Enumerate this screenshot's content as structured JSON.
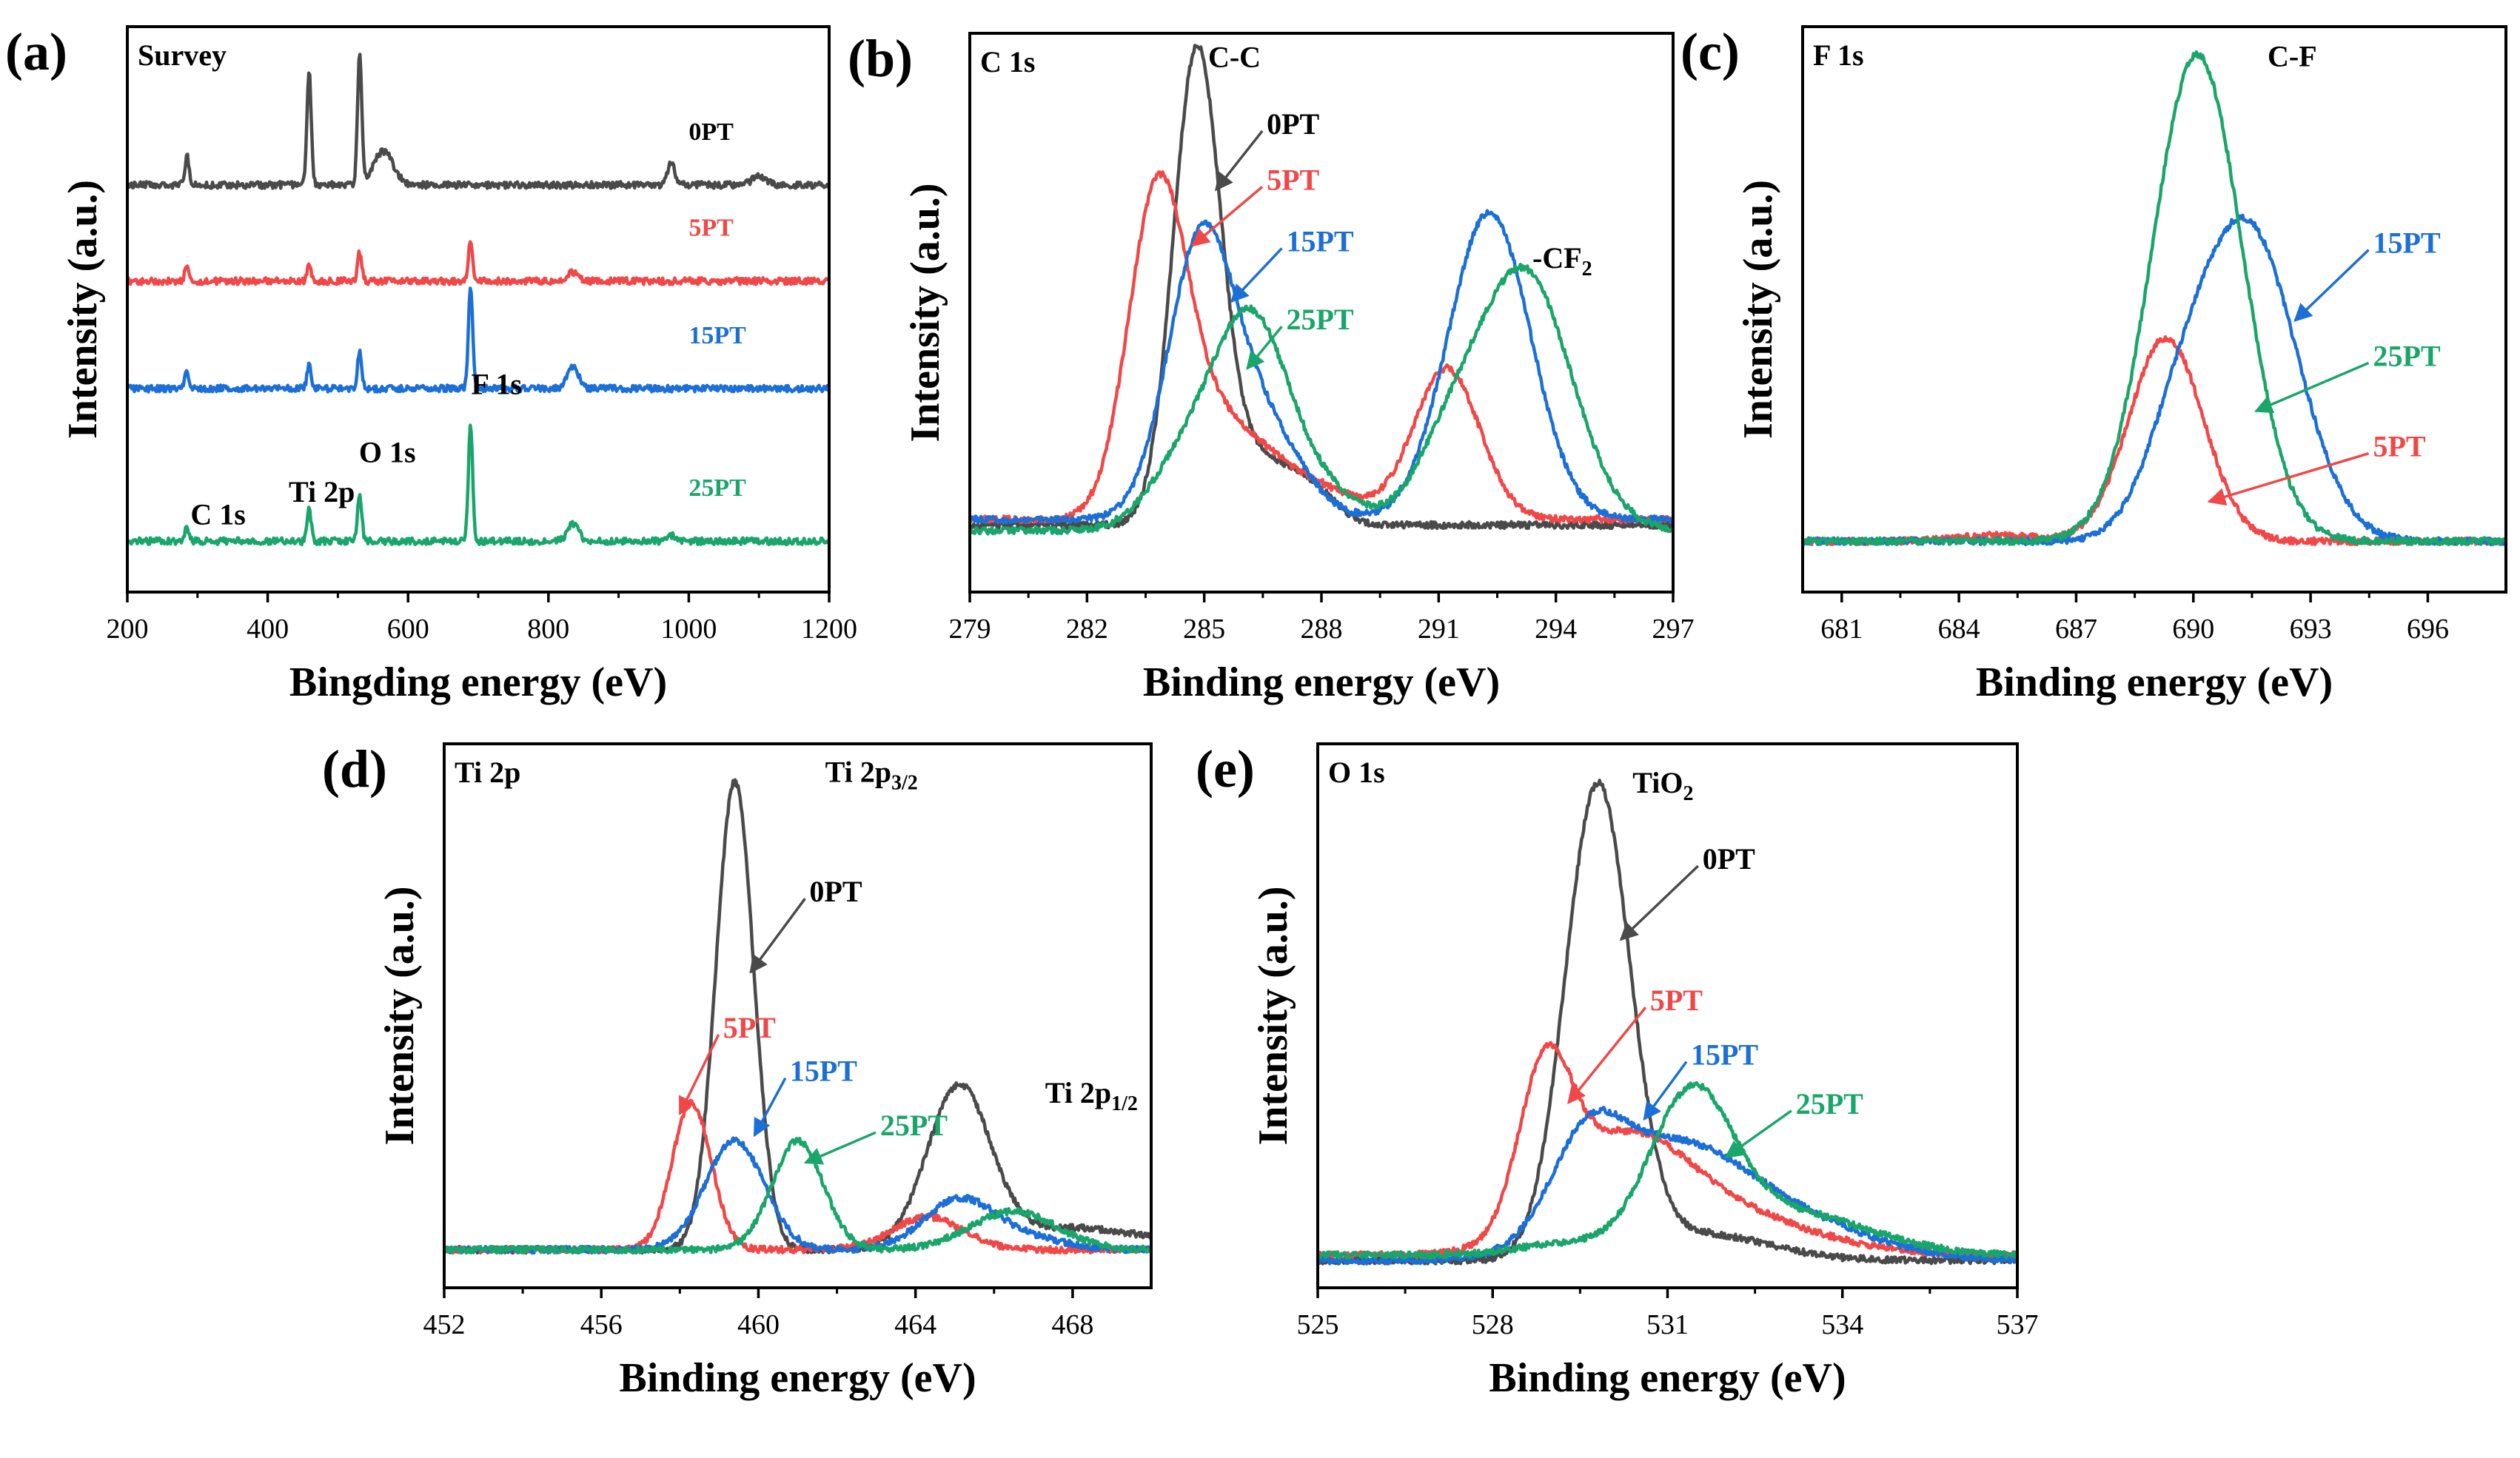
{
  "colors": {
    "0PT": "#4a4a4a",
    "5PT": "#f04848",
    "15PT": "#1c6fd6",
    "25PT": "#1aa56b"
  },
  "chart_data": [
    {
      "type": "line",
      "panel": "(a)",
      "title": "Survey",
      "xlabel": "Bingding energy (eV)",
      "ylabel": "Intensity (a.u.)",
      "xlim": [
        200,
        1200
      ],
      "ylim": [
        0,
        1
      ],
      "xticks": [
        "200",
        "400",
        "600",
        "800",
        "1000",
        "1200"
      ],
      "series": [
        {
          "name": "0PT",
          "label": "0PT",
          "baseline": 0.72,
          "peaks": [
            [
              285,
              0.05,
              3
            ],
            [
              459,
              0.2,
              3
            ],
            [
              531,
              0.23,
              3
            ],
            [
              565,
              0.06,
              14
            ],
            [
              975,
              0.04,
              5
            ],
            [
              1100,
              0.015,
              10
            ]
          ]
        },
        {
          "name": "5PT",
          "label": "5PT",
          "baseline": 0.55,
          "peaks": [
            [
              285,
              0.025,
              3
            ],
            [
              459,
              0.03,
              3
            ],
            [
              531,
              0.05,
              3
            ],
            [
              689,
              0.075,
              3
            ],
            [
              835,
              0.015,
              8
            ]
          ]
        },
        {
          "name": "15PT",
          "label": "15PT",
          "baseline": 0.36,
          "peaks": [
            [
              285,
              0.03,
              3
            ],
            [
              459,
              0.04,
              3
            ],
            [
              531,
              0.065,
              3
            ],
            [
              689,
              0.18,
              3
            ],
            [
              835,
              0.04,
              8
            ]
          ]
        },
        {
          "name": "25PT",
          "label": "25PT",
          "baseline": 0.09,
          "peaks": [
            [
              285,
              0.025,
              3
            ],
            [
              459,
              0.055,
              3
            ],
            [
              531,
              0.085,
              3
            ],
            [
              689,
              0.21,
              3
            ],
            [
              835,
              0.03,
              8
            ],
            [
              975,
              0.01,
              5
            ]
          ]
        }
      ],
      "annotations": [
        {
          "text": "C 1s",
          "x": 290,
          "y": 0.12,
          "kind": "label"
        },
        {
          "text": "Ti 2p",
          "x": 430,
          "y": 0.16,
          "kind": "label"
        },
        {
          "text": "O 1s",
          "x": 530,
          "y": 0.23,
          "kind": "label"
        },
        {
          "text": "F 1s",
          "x": 690,
          "y": 0.35,
          "kind": "label"
        }
      ]
    },
    {
      "type": "line",
      "panel": "(b)",
      "title": "C 1s",
      "xlabel": "Binding energy (eV)",
      "ylabel": "Intensity (a.u.)",
      "xlim": [
        279,
        297
      ],
      "ylim": [
        0,
        1
      ],
      "xticks": [
        "279",
        "282",
        "285",
        "288",
        "291",
        "294",
        "297"
      ],
      "series": [
        {
          "name": "0PT",
          "label": "0PT",
          "baseline": 0.12,
          "peaks": [
            [
              284.8,
              0.82,
              0.6
            ],
            [
              286.3,
              0.12,
              1.0
            ],
            [
              287.8,
              0.04,
              0.6
            ]
          ]
        },
        {
          "name": "5PT",
          "label": "5PT",
          "baseline": 0.13,
          "peaks": [
            [
              283.8,
              0.56,
              0.75
            ],
            [
              285.4,
              0.16,
              1.1
            ],
            [
              287.6,
              0.06,
              1.2
            ],
            [
              291.2,
              0.27,
              0.85
            ]
          ]
        },
        {
          "name": "15PT",
          "label": "15PT",
          "baseline": 0.13,
          "peaks": [
            [
              284.9,
              0.48,
              0.85
            ],
            [
              286.5,
              0.16,
              1.0
            ],
            [
              292.3,
              0.55,
              1.05
            ]
          ]
        },
        {
          "name": "25PT",
          "label": "25PT",
          "baseline": 0.11,
          "peaks": [
            [
              286.2,
              0.38,
              1.0
            ],
            [
              284.4,
              0.1,
              0.9
            ],
            [
              288.3,
              0.05,
              0.9
            ],
            [
              293.2,
              0.46,
              1.2
            ],
            [
              291.2,
              0.12,
              0.9
            ]
          ]
        }
      ],
      "annotations": [
        {
          "text": "C-C",
          "x": 285.1,
          "y": 0.94,
          "kind": "label"
        },
        {
          "text": "-CF2",
          "x": 293.4,
          "y": 0.58,
          "kind": "label"
        },
        {
          "text": "0PT",
          "x": 286.6,
          "y": 0.82,
          "kind": "arrow",
          "tx": 285.3,
          "ty": 0.72
        },
        {
          "text": "5PT",
          "x": 286.6,
          "y": 0.72,
          "kind": "arrow",
          "tx": 284.7,
          "ty": 0.62
        },
        {
          "text": "15PT",
          "x": 287.1,
          "y": 0.61,
          "kind": "arrow",
          "tx": 285.7,
          "ty": 0.52
        },
        {
          "text": "25PT",
          "x": 287.1,
          "y": 0.47,
          "kind": "arrow",
          "tx": 286.1,
          "ty": 0.4
        }
      ]
    },
    {
      "type": "line",
      "panel": "(c)",
      "title": "F 1s",
      "xlabel": "Binding energy (eV)",
      "ylabel": "Intensity (a.u.)",
      "xlim": [
        680,
        698
      ],
      "ylim": [
        0,
        1
      ],
      "xticks": [
        "681",
        "684",
        "687",
        "690",
        "693",
        "696"
      ],
      "series": [
        {
          "name": "5PT",
          "label": "5PT",
          "baseline": 0.09,
          "peaks": [
            [
              689.3,
              0.36,
              0.95
            ],
            [
              685.0,
              0.01,
              1.0
            ]
          ]
        },
        {
          "name": "15PT",
          "label": "15PT",
          "baseline": 0.09,
          "peaks": [
            [
              691.4,
              0.55,
              1.25
            ],
            [
              689.6,
              0.14,
              0.9
            ]
          ]
        },
        {
          "name": "25PT",
          "label": "25PT",
          "baseline": 0.09,
          "peaks": [
            [
              690.1,
              0.86,
              1.15
            ]
          ]
        }
      ],
      "annotations": [
        {
          "text": "C-F",
          "x": 691.9,
          "y": 0.93,
          "kind": "label"
        },
        {
          "text": "15PT",
          "x": 694.6,
          "y": 0.6,
          "kind": "arrow",
          "tx": 692.6,
          "ty": 0.48
        },
        {
          "text": "25PT",
          "x": 694.6,
          "y": 0.4,
          "kind": "arrow",
          "tx": 691.6,
          "ty": 0.32
        },
        {
          "text": "5PT",
          "x": 694.6,
          "y": 0.24,
          "kind": "arrow",
          "tx": 690.4,
          "ty": 0.16
        }
      ]
    },
    {
      "type": "line",
      "panel": "(d)",
      "title": "Ti 2p",
      "xlabel": "Binding energy (eV)",
      "ylabel": "Intensity (a.u.)",
      "xlim": [
        452,
        470
      ],
      "ylim": [
        0,
        1
      ],
      "xticks": [
        "452",
        "456",
        "460",
        "464",
        "468"
      ],
      "series": [
        {
          "name": "0PT",
          "label": "0PT",
          "baseline": 0.07,
          "peaks": [
            [
              459.4,
              0.86,
              0.48
            ],
            [
              465.1,
              0.29,
              0.8
            ],
            [
              468.0,
              0.04,
              2.0
            ]
          ]
        },
        {
          "name": "5PT",
          "label": "5PT",
          "baseline": 0.07,
          "peaks": [
            [
              458.3,
              0.27,
              0.5
            ],
            [
              464.3,
              0.06,
              0.9
            ]
          ]
        },
        {
          "name": "15PT",
          "label": "15PT",
          "baseline": 0.07,
          "peaks": [
            [
              459.4,
              0.2,
              0.75
            ],
            [
              465.1,
              0.09,
              0.9
            ],
            [
              466.8,
              0.02,
              1.0
            ]
          ]
        },
        {
          "name": "25PT",
          "label": "25PT",
          "baseline": 0.07,
          "peaks": [
            [
              461.0,
              0.2,
              0.65
            ],
            [
              466.5,
              0.07,
              1.1
            ]
          ]
        }
      ],
      "annotations": [
        {
          "text": "Ti 2p3/2",
          "x": 461.7,
          "y": 0.93,
          "kind": "label"
        },
        {
          "text": "Ti 2p1/2",
          "x": 467.3,
          "y": 0.34,
          "kind": "label"
        },
        {
          "text": "0PT",
          "x": 461.3,
          "y": 0.71,
          "kind": "arrow",
          "tx": 459.8,
          "ty": 0.58
        },
        {
          "text": "5PT",
          "x": 459.1,
          "y": 0.46,
          "kind": "arrow",
          "tx": 458.0,
          "ty": 0.32
        },
        {
          "text": "15PT",
          "x": 460.8,
          "y": 0.38,
          "kind": "arrow",
          "tx": 459.9,
          "ty": 0.28
        },
        {
          "text": "25PT",
          "x": 463.1,
          "y": 0.28,
          "kind": "arrow",
          "tx": 461.2,
          "ty": 0.23
        }
      ]
    },
    {
      "type": "line",
      "panel": "(e)",
      "title": "O 1s",
      "xlabel": "Binding energy (eV)",
      "ylabel": "Intensity (a.u.)",
      "xlim": [
        525,
        537
      ],
      "ylim": [
        0,
        1
      ],
      "xticks": [
        "525",
        "528",
        "531",
        "534",
        "537"
      ],
      "series": [
        {
          "name": "0PT",
          "label": "0PT",
          "baseline": 0.05,
          "peaks": [
            [
              529.8,
              0.86,
              0.55
            ],
            [
              531.5,
              0.05,
              1.2
            ]
          ]
        },
        {
          "name": "5PT",
          "label": "5PT",
          "baseline": 0.06,
          "peaks": [
            [
              528.9,
              0.28,
              0.45
            ],
            [
              530.2,
              0.19,
              1.1
            ],
            [
              532.0,
              0.07,
              1.5
            ]
          ]
        },
        {
          "name": "15PT",
          "label": "15PT",
          "baseline": 0.05,
          "peaks": [
            [
              529.6,
              0.15,
              0.6
            ],
            [
              531.0,
              0.2,
              1.3
            ],
            [
              533.2,
              0.06,
              1.4
            ]
          ]
        },
        {
          "name": "25PT",
          "label": "25PT",
          "baseline": 0.06,
          "peaks": [
            [
              531.4,
              0.27,
              0.7
            ],
            [
              533.0,
              0.08,
              1.4
            ],
            [
              529.2,
              0.02,
              0.8
            ]
          ]
        }
      ],
      "annotations": [
        {
          "text": "TiO2",
          "x": 530.4,
          "y": 0.91,
          "kind": "label"
        },
        {
          "text": "0PT",
          "x": 531.6,
          "y": 0.77,
          "kind": "arrow",
          "tx": 530.2,
          "ty": 0.64
        },
        {
          "text": "5PT",
          "x": 530.7,
          "y": 0.51,
          "kind": "arrow",
          "tx": 529.3,
          "ty": 0.34
        },
        {
          "text": "15PT",
          "x": 531.4,
          "y": 0.41,
          "kind": "arrow",
          "tx": 530.6,
          "ty": 0.31
        },
        {
          "text": "25PT",
          "x": 533.2,
          "y": 0.32,
          "kind": "arrow",
          "tx": 532.0,
          "ty": 0.24
        }
      ]
    }
  ]
}
